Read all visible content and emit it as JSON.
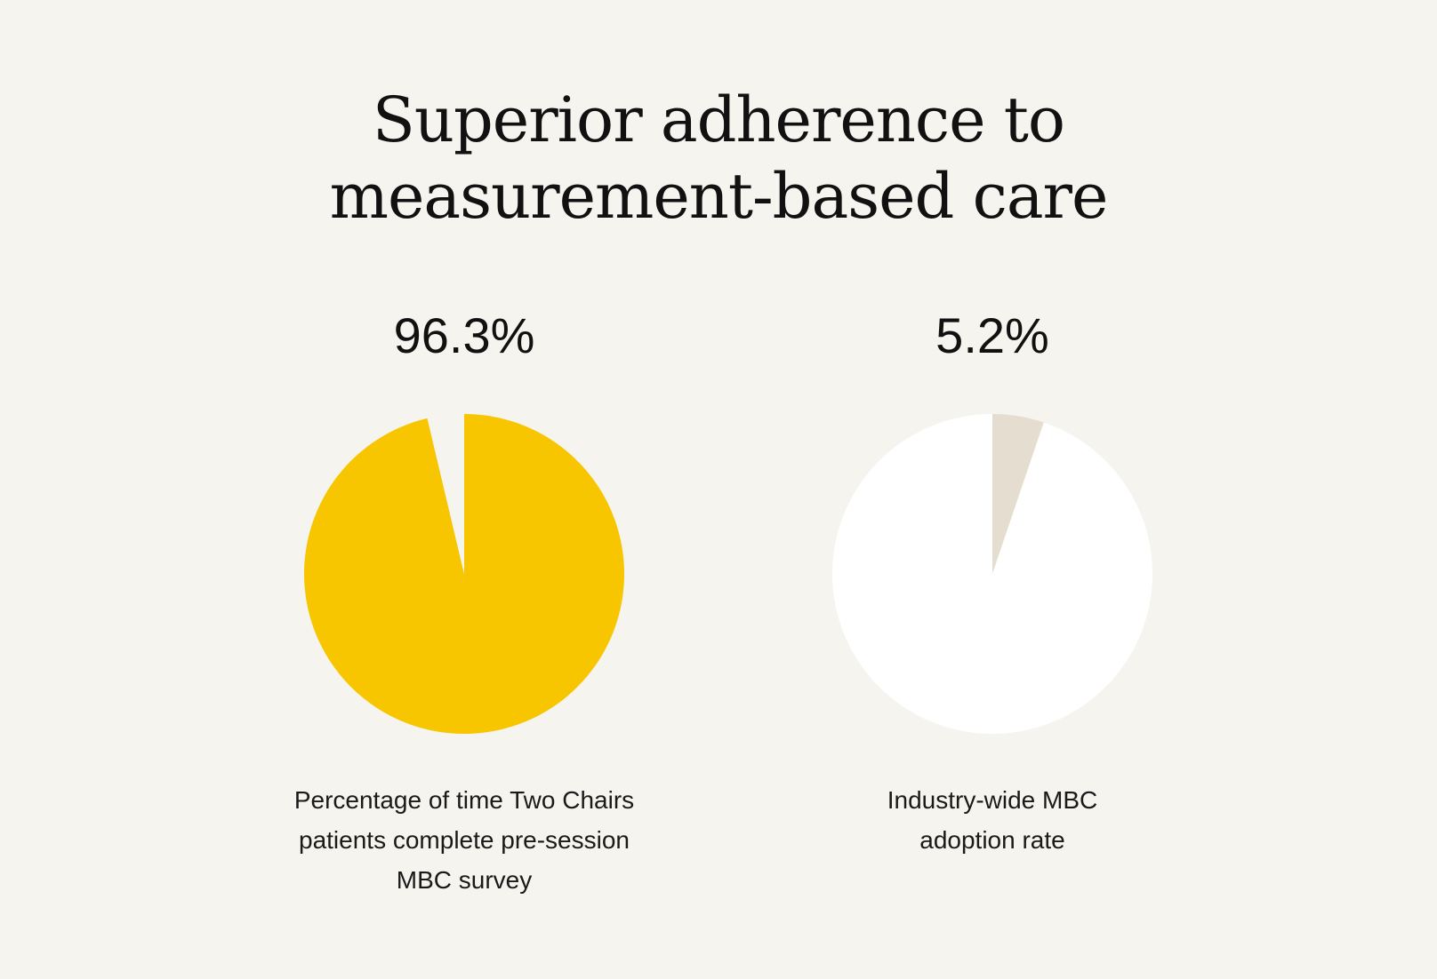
{
  "title": {
    "line1": "Superior adherence to",
    "line2": "measurement-based care"
  },
  "chart_data": [
    {
      "type": "pie",
      "value_label": "96.3%",
      "slices": [
        {
          "value": 96.3,
          "color": "#f7c600"
        },
        {
          "value": 3.7,
          "color": "#f6f4ee"
        }
      ],
      "caption": [
        "Percentage of time Two Chairs",
        "patients complete pre-session",
        "MBC survey"
      ]
    },
    {
      "type": "pie",
      "value_label": "5.2%",
      "slices": [
        {
          "value": 5.2,
          "color": "#e6ddd1"
        },
        {
          "value": 94.8,
          "color": "#ffffff"
        }
      ],
      "caption": [
        "Industry-wide MBC",
        "adoption rate"
      ]
    }
  ]
}
